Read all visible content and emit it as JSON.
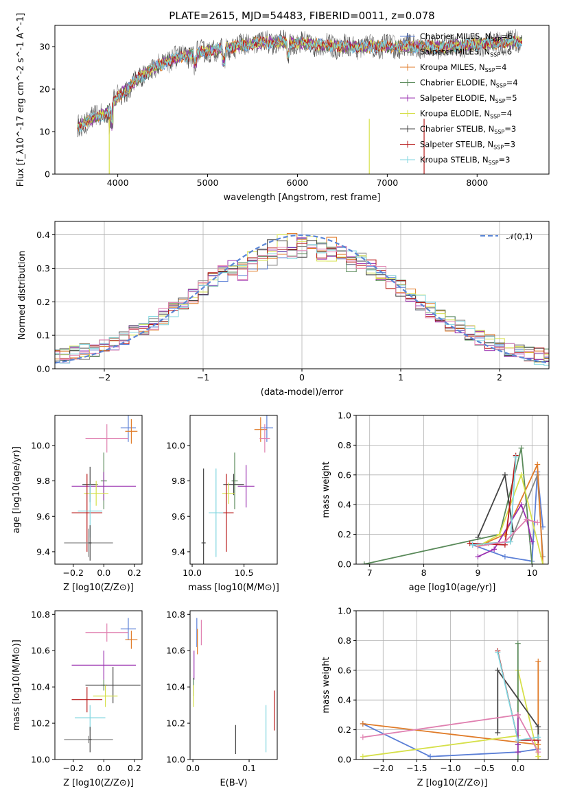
{
  "title": "PLATE=2615, MJD=54483, FIBERID=0011, z=0.078",
  "colors": {
    "Chabrier MILES": "#5b7fd6",
    "Salpeter MILES": "#888888",
    "Kroupa MILES": "#e07b28",
    "Chabrier ELODIE": "#5a8a5a",
    "Salpeter ELODIE": "#9a30b0",
    "Kroupa ELODIE": "#d6e04a",
    "Chabrier STELIB": "#444444",
    "Salpeter STELIB": "#b81a1a",
    "Kroupa STELIB": "#7fd6df",
    "extra_pink": "#e080b0"
  },
  "chart_data": [
    {
      "id": "spectrum",
      "type": "line",
      "title": "PLATE=2615, MJD=54483, FIBERID=0011, z=0.078",
      "xlabel": "wavelength [Angstrom, rest frame]",
      "ylabel": "Flux [f_λ10^-17 erg cm^-2 s^-1 A^-1]",
      "xlim": [
        3300,
        8800
      ],
      "ylim": [
        0,
        35
      ],
      "xticks": [
        4000,
        5000,
        6000,
        7000,
        8000
      ],
      "yticks": [
        0,
        10,
        20,
        30
      ],
      "legend": [
        "Chabrier MILES, N_SSP=6",
        "Salpeter MILES, N_SSP=6",
        "Kroupa MILES, N_SSP=4",
        "Chabrier ELODIE, N_SSP=4",
        "Salpeter ELODIE, N_SSP=5",
        "Kroupa ELODIE, N_SSP=4",
        "Chabrier STELIB, N_SSP=3",
        "Salpeter STELIB, N_SSP=3",
        "Kroupa STELIB, N_SSP=3"
      ],
      "legend_placement": "top-right",
      "continuum": [
        [
          3550,
          11
        ],
        [
          3700,
          13
        ],
        [
          3850,
          14
        ],
        [
          4000,
          18
        ],
        [
          4200,
          22
        ],
        [
          4400,
          25
        ],
        [
          4600,
          27
        ],
        [
          4800,
          28
        ],
        [
          5000,
          29
        ],
        [
          5300,
          30
        ],
        [
          5600,
          31
        ],
        [
          5900,
          31
        ],
        [
          6200,
          30.5
        ],
        [
          6500,
          30
        ],
        [
          6800,
          30
        ],
        [
          7100,
          30
        ],
        [
          7400,
          30
        ],
        [
          7700,
          30
        ],
        [
          8000,
          30.5
        ],
        [
          8300,
          31
        ],
        [
          8500,
          31
        ]
      ]
    },
    {
      "id": "residual_hist",
      "type": "line",
      "xlabel": "(data-model)/error",
      "ylabel": "Normed distribution",
      "xlim": [
        -2.5,
        2.5
      ],
      "ylim": [
        0,
        0.44
      ],
      "xticks": [
        -2,
        -1,
        0,
        1,
        2
      ],
      "yticks": [
        0.0,
        0.1,
        0.2,
        0.3,
        0.4
      ],
      "grid": true,
      "legend": [
        "𝒩(0,1)"
      ],
      "legend_placement": "top-right",
      "bin_width": 0.1
    },
    {
      "id": "age_vs_Z",
      "type": "scatter",
      "xlabel": "Z [log10(Z/Z⊙)]",
      "ylabel": "age [log10(age/yr)]",
      "xlim": [
        -0.32,
        0.25
      ],
      "ylim": [
        9.33,
        10.17
      ],
      "xticks": [
        -0.2,
        0.0,
        0.2
      ],
      "yticks": [
        9.4,
        9.6,
        9.8,
        10.0
      ],
      "points": [
        {
          "model": "Chabrier MILES",
          "x": 0.16,
          "y": 10.1,
          "xerr": 0.05,
          "yerr": 0.08
        },
        {
          "model": "Kroupa MILES",
          "x": 0.18,
          "y": 10.08,
          "xerr": 0.04,
          "yerr": 0.07
        },
        {
          "model": "extra_pink",
          "x": 0.02,
          "y": 10.04,
          "xerr": 0.14,
          "yerr": 0.08
        },
        {
          "model": "Chabrier ELODIE",
          "x": 0.0,
          "y": 9.8,
          "xerr": 0.02,
          "yerr": 0.16
        },
        {
          "model": "Salpeter ELODIE",
          "x": 0.0,
          "y": 9.77,
          "xerr": 0.21,
          "yerr": 0.08
        },
        {
          "model": "Chabrier STELIB",
          "x": -0.09,
          "y": 9.78,
          "xerr": 0.05,
          "yerr": 0.1
        },
        {
          "model": "Kroupa ELODIE",
          "x": -0.05,
          "y": 9.73,
          "xerr": 0.08,
          "yerr": 0.07
        },
        {
          "model": "Salpeter STELIB",
          "x": -0.11,
          "y": 9.62,
          "xerr": 0.1,
          "yerr": 0.22
        },
        {
          "model": "Kroupa STELIB",
          "x": -0.09,
          "y": 9.63,
          "xerr": 0.08,
          "yerr": 0.15
        },
        {
          "model": "Salpeter MILES",
          "x": -0.1,
          "y": 9.45,
          "xerr": 0.16,
          "yerr": 0.08
        },
        {
          "model": "Chabrier STELIB",
          "x": -0.09,
          "y": 9.45,
          "xerr": 0.01,
          "yerr": 0.1
        }
      ]
    },
    {
      "id": "age_vs_mass",
      "type": "scatter",
      "xlabel": "mass [log10(M/M⊙)]",
      "xlim": [
        9.98,
        10.82
      ],
      "ylim": [
        9.33,
        10.17
      ],
      "xticks": [
        10.0,
        10.5
      ],
      "yticks": [
        9.4,
        9.6,
        9.8,
        10.0
      ],
      "points": [
        {
          "model": "Chabrier MILES",
          "x": 10.72,
          "y": 10.1,
          "xerr": 0.06,
          "yerr": 0.08
        },
        {
          "model": "Kroupa MILES",
          "x": 10.66,
          "y": 10.09,
          "xerr": 0.06,
          "yerr": 0.07
        },
        {
          "model": "extra_pink",
          "x": 10.7,
          "y": 10.04,
          "xerr": 0.05,
          "yerr": 0.08
        },
        {
          "model": "Chabrier ELODIE",
          "x": 10.41,
          "y": 9.8,
          "xerr": 0.03,
          "yerr": 0.16
        },
        {
          "model": "Salpeter ELODIE",
          "x": 10.52,
          "y": 9.77,
          "xerr": 0.08,
          "yerr": 0.12
        },
        {
          "model": "Chabrier STELIB",
          "x": 10.4,
          "y": 9.78,
          "xerr": 0.1,
          "yerr": 0.06
        },
        {
          "model": "Kroupa ELODIE",
          "x": 10.35,
          "y": 9.73,
          "xerr": 0.06,
          "yerr": 0.06
        },
        {
          "model": "Salpeter STELIB",
          "x": 10.33,
          "y": 9.62,
          "xerr": 0.07,
          "yerr": 0.22
        },
        {
          "model": "Kroupa STELIB",
          "x": 10.23,
          "y": 9.62,
          "xerr": 0.07,
          "yerr": 0.25
        },
        {
          "model": "Chabrier STELIB",
          "x": 10.11,
          "y": 9.45,
          "xerr": 0.02,
          "yerr": 0.42
        }
      ]
    },
    {
      "id": "weight_vs_age",
      "type": "line",
      "xlabel": "age [log10(age/yr)]",
      "ylabel": "mass weight",
      "xlim": [
        6.75,
        10.3
      ],
      "ylim": [
        0,
        1
      ],
      "xticks": [
        7,
        8,
        9,
        10
      ],
      "yticks": [
        0.0,
        0.2,
        0.4,
        0.6,
        0.8,
        1.0
      ],
      "grid": true,
      "series": [
        {
          "model": "Chabrier MILES",
          "x": [
            8.9,
            9.5,
            10.0,
            10.1,
            10.2
          ],
          "y": [
            0.13,
            0.05,
            0.02,
            0.62,
            0.25
          ]
        },
        {
          "model": "Salpeter MILES",
          "x": [
            8.9,
            9.2,
            9.6,
            10.1,
            10.2
          ],
          "y": [
            0.13,
            0.14,
            0.15,
            0.6,
            0.05
          ]
        },
        {
          "model": "Kroupa MILES",
          "x": [
            9.0,
            9.5,
            10.1,
            10.2
          ],
          "y": [
            0.12,
            0.2,
            0.67,
            0.0
          ]
        },
        {
          "model": "Chabrier ELODIE",
          "x": [
            6.9,
            9.4,
            9.8,
            10.0
          ],
          "y": [
            0.0,
            0.2,
            0.78,
            0.0
          ]
        },
        {
          "model": "Salpeter ELODIE",
          "x": [
            9.0,
            9.3,
            9.8,
            9.9,
            10.0
          ],
          "y": [
            0.05,
            0.1,
            0.4,
            0.3,
            0.15
          ]
        },
        {
          "model": "Kroupa ELODIE",
          "x": [
            9.0,
            9.4,
            9.8,
            10.2
          ],
          "y": [
            0.12,
            0.2,
            0.6,
            0.0
          ]
        },
        {
          "model": "Chabrier STELIB",
          "x": [
            9.0,
            9.5,
            9.65
          ],
          "y": [
            0.18,
            0.6,
            0.22
          ]
        },
        {
          "model": "Salpeter STELIB",
          "x": [
            8.85,
            9.5,
            9.7
          ],
          "y": [
            0.14,
            0.13,
            0.73
          ]
        },
        {
          "model": "Kroupa STELIB",
          "x": [
            8.9,
            9.6,
            9.7
          ],
          "y": [
            0.13,
            0.15,
            0.72
          ]
        },
        {
          "model": "extra_pink",
          "x": [
            9.0,
            9.5,
            9.9,
            10.1
          ],
          "y": [
            0.12,
            0.15,
            0.3,
            0.28
          ]
        }
      ]
    },
    {
      "id": "mass_vs_Z",
      "type": "scatter",
      "xlabel": "Z [log10(Z/Z⊙)]",
      "ylabel": "mass [log10(M/M⊙)]",
      "xlim": [
        -0.32,
        0.25
      ],
      "ylim": [
        10.0,
        10.82
      ],
      "xticks": [
        -0.2,
        0.0,
        0.2
      ],
      "yticks": [
        10.0,
        10.2,
        10.4,
        10.6,
        10.8
      ],
      "points": [
        {
          "model": "Chabrier MILES",
          "x": 0.16,
          "y": 10.72,
          "xerr": 0.05,
          "yerr": 0.06
        },
        {
          "model": "Kroupa MILES",
          "x": 0.18,
          "y": 10.66,
          "xerr": 0.04,
          "yerr": 0.05
        },
        {
          "model": "extra_pink",
          "x": 0.02,
          "y": 10.7,
          "xerr": 0.14,
          "yerr": 0.05
        },
        {
          "model": "Chabrier ELODIE",
          "x": 0.0,
          "y": 10.41,
          "xerr": 0.02,
          "yerr": 0.03
        },
        {
          "model": "Salpeter ELODIE",
          "x": 0.0,
          "y": 10.52,
          "xerr": 0.21,
          "yerr": 0.08
        },
        {
          "model": "Chabrier STELIB",
          "x": 0.06,
          "y": 10.41,
          "xerr": 0.18,
          "yerr": 0.1
        },
        {
          "model": "Kroupa ELODIE",
          "x": 0.01,
          "y": 10.35,
          "xerr": 0.08,
          "yerr": 0.06
        },
        {
          "model": "Salpeter STELIB",
          "x": -0.11,
          "y": 10.33,
          "xerr": 0.1,
          "yerr": 0.07
        },
        {
          "model": "Kroupa STELIB",
          "x": -0.09,
          "y": 10.23,
          "xerr": 0.1,
          "yerr": 0.07
        },
        {
          "model": "Salpeter MILES",
          "x": -0.1,
          "y": 10.11,
          "xerr": 0.16,
          "yerr": 0.02
        },
        {
          "model": "Chabrier STELIB",
          "x": -0.09,
          "y": 10.11,
          "xerr": 0.01,
          "yerr": 0.07
        }
      ]
    },
    {
      "id": "mass_vs_ebv",
      "type": "scatter",
      "xlabel": "E(B-V)",
      "xlim": [
        -0.005,
        0.15
      ],
      "ylim": [
        10.0,
        10.82
      ],
      "xticks": [
        0.0,
        0.1
      ],
      "yticks": [
        10.0,
        10.2,
        10.4,
        10.6,
        10.8
      ],
      "points": [
        {
          "model": "Chabrier MILES",
          "x": 0.007,
          "y": 10.7,
          "yerr": 0.08
        },
        {
          "model": "extra_pink",
          "x": 0.015,
          "y": 10.7,
          "yerr": 0.07
        },
        {
          "model": "Kroupa MILES",
          "x": 0.008,
          "y": 10.65,
          "yerr": 0.07
        },
        {
          "model": "Salpeter ELODIE",
          "x": 0.002,
          "y": 10.52,
          "yerr": 0.08
        },
        {
          "model": "Chabrier ELODIE",
          "x": 0.001,
          "y": 10.4,
          "yerr": 0.05
        },
        {
          "model": "Kroupa ELODIE",
          "x": 0.001,
          "y": 10.35,
          "yerr": 0.06
        },
        {
          "model": "Kroupa STELIB",
          "x": 0.13,
          "y": 10.17,
          "yerr": 0.13
        },
        {
          "model": "Salpeter STELIB",
          "x": 0.145,
          "y": 10.27,
          "yerr": 0.11
        },
        {
          "model": "Chabrier STELIB",
          "x": 0.076,
          "y": 10.11,
          "yerr": 0.08
        }
      ]
    },
    {
      "id": "weight_vs_Z",
      "type": "line",
      "xlabel": "Z [log10(Z/Z⊙)]",
      "ylabel": "mass weight",
      "xlim": [
        -2.4,
        0.45
      ],
      "ylim": [
        0,
        1
      ],
      "xticks": [
        -2.0,
        -1.5,
        -1.0,
        -0.5,
        0.0
      ],
      "yticks": [
        0.0,
        0.2,
        0.4,
        0.6,
        0.8,
        1.0
      ],
      "grid": true,
      "series": [
        {
          "model": "Chabrier MILES",
          "x": [
            -2.3,
            -1.3,
            0.0,
            0.3
          ],
          "y": [
            0.24,
            0.02,
            0.05,
            0.07
          ]
        },
        {
          "model": "Kroupa MILES",
          "x": [
            -2.3,
            0.3,
            0.3,
            0.3
          ],
          "y": [
            0.24,
            0.1,
            0.66,
            0.0
          ]
        },
        {
          "model": "Kroupa ELODIE",
          "x": [
            -2.3,
            0.0,
            0.0,
            0.3
          ],
          "y": [
            0.02,
            0.16,
            0.6,
            0.02
          ]
        },
        {
          "model": "Chabrier ELODIE",
          "x": [
            0.0,
            0.0,
            0.0
          ],
          "y": [
            0.0,
            0.78,
            0.1
          ]
        },
        {
          "model": "Salpeter ELODIE",
          "x": [
            0.0,
            0.0,
            0.0
          ],
          "y": [
            0.05,
            0.3,
            0.1
          ]
        },
        {
          "model": "Chabrier STELIB",
          "x": [
            -0.3,
            -0.3,
            0.3,
            0.3
          ],
          "y": [
            0.18,
            0.6,
            0.22,
            0.13
          ]
        },
        {
          "model": "Salpeter STELIB",
          "x": [
            -0.3,
            0.0,
            0.3
          ],
          "y": [
            0.73,
            0.13,
            0.13
          ]
        },
        {
          "model": "Kroupa STELIB",
          "x": [
            -0.3,
            0.0,
            0.3
          ],
          "y": [
            0.72,
            0.13,
            0.15
          ]
        },
        {
          "model": "extra_pink",
          "x": [
            -2.3,
            0.0,
            0.3
          ],
          "y": [
            0.15,
            0.3,
            0.05
          ]
        }
      ]
    }
  ]
}
